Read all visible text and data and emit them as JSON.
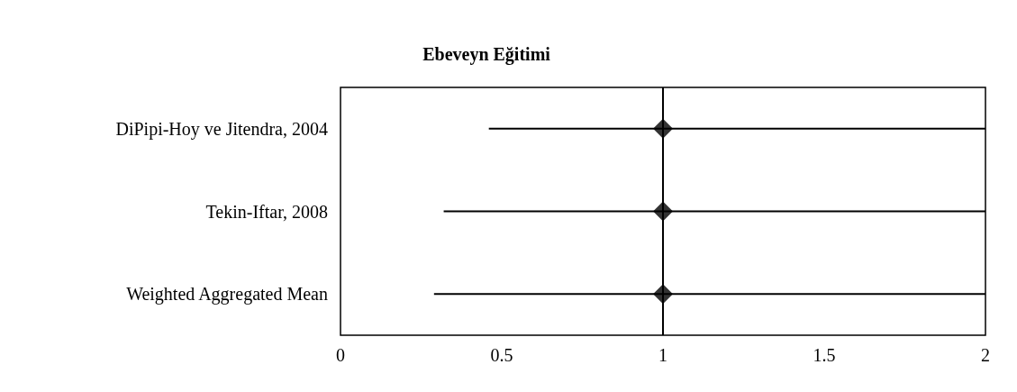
{
  "chart_data": {
    "type": "scatter",
    "title": "Ebeveyn Eğitimi",
    "orientation": "horizontal",
    "categories": [
      "DiPipi-Hoy ve Jitendra, 2004",
      "Tekin-Iftar, 2008",
      "Weighted Aggregated Mean"
    ],
    "series": [
      {
        "color": "#000000",
        "values": [
          1,
          1,
          1
        ],
        "errors": [
          [
            0.46,
            2
          ],
          [
            0.32,
            2
          ],
          [
            0.29,
            2
          ]
        ]
      }
    ],
    "xlim": [
      0,
      2
    ],
    "xticks": [
      0,
      0.5,
      1,
      1.5,
      2
    ],
    "ref_lines": [
      {
        "axis": "x",
        "value": 1,
        "color": "#000000"
      }
    ],
    "marker": "diamond",
    "grid": false
  }
}
